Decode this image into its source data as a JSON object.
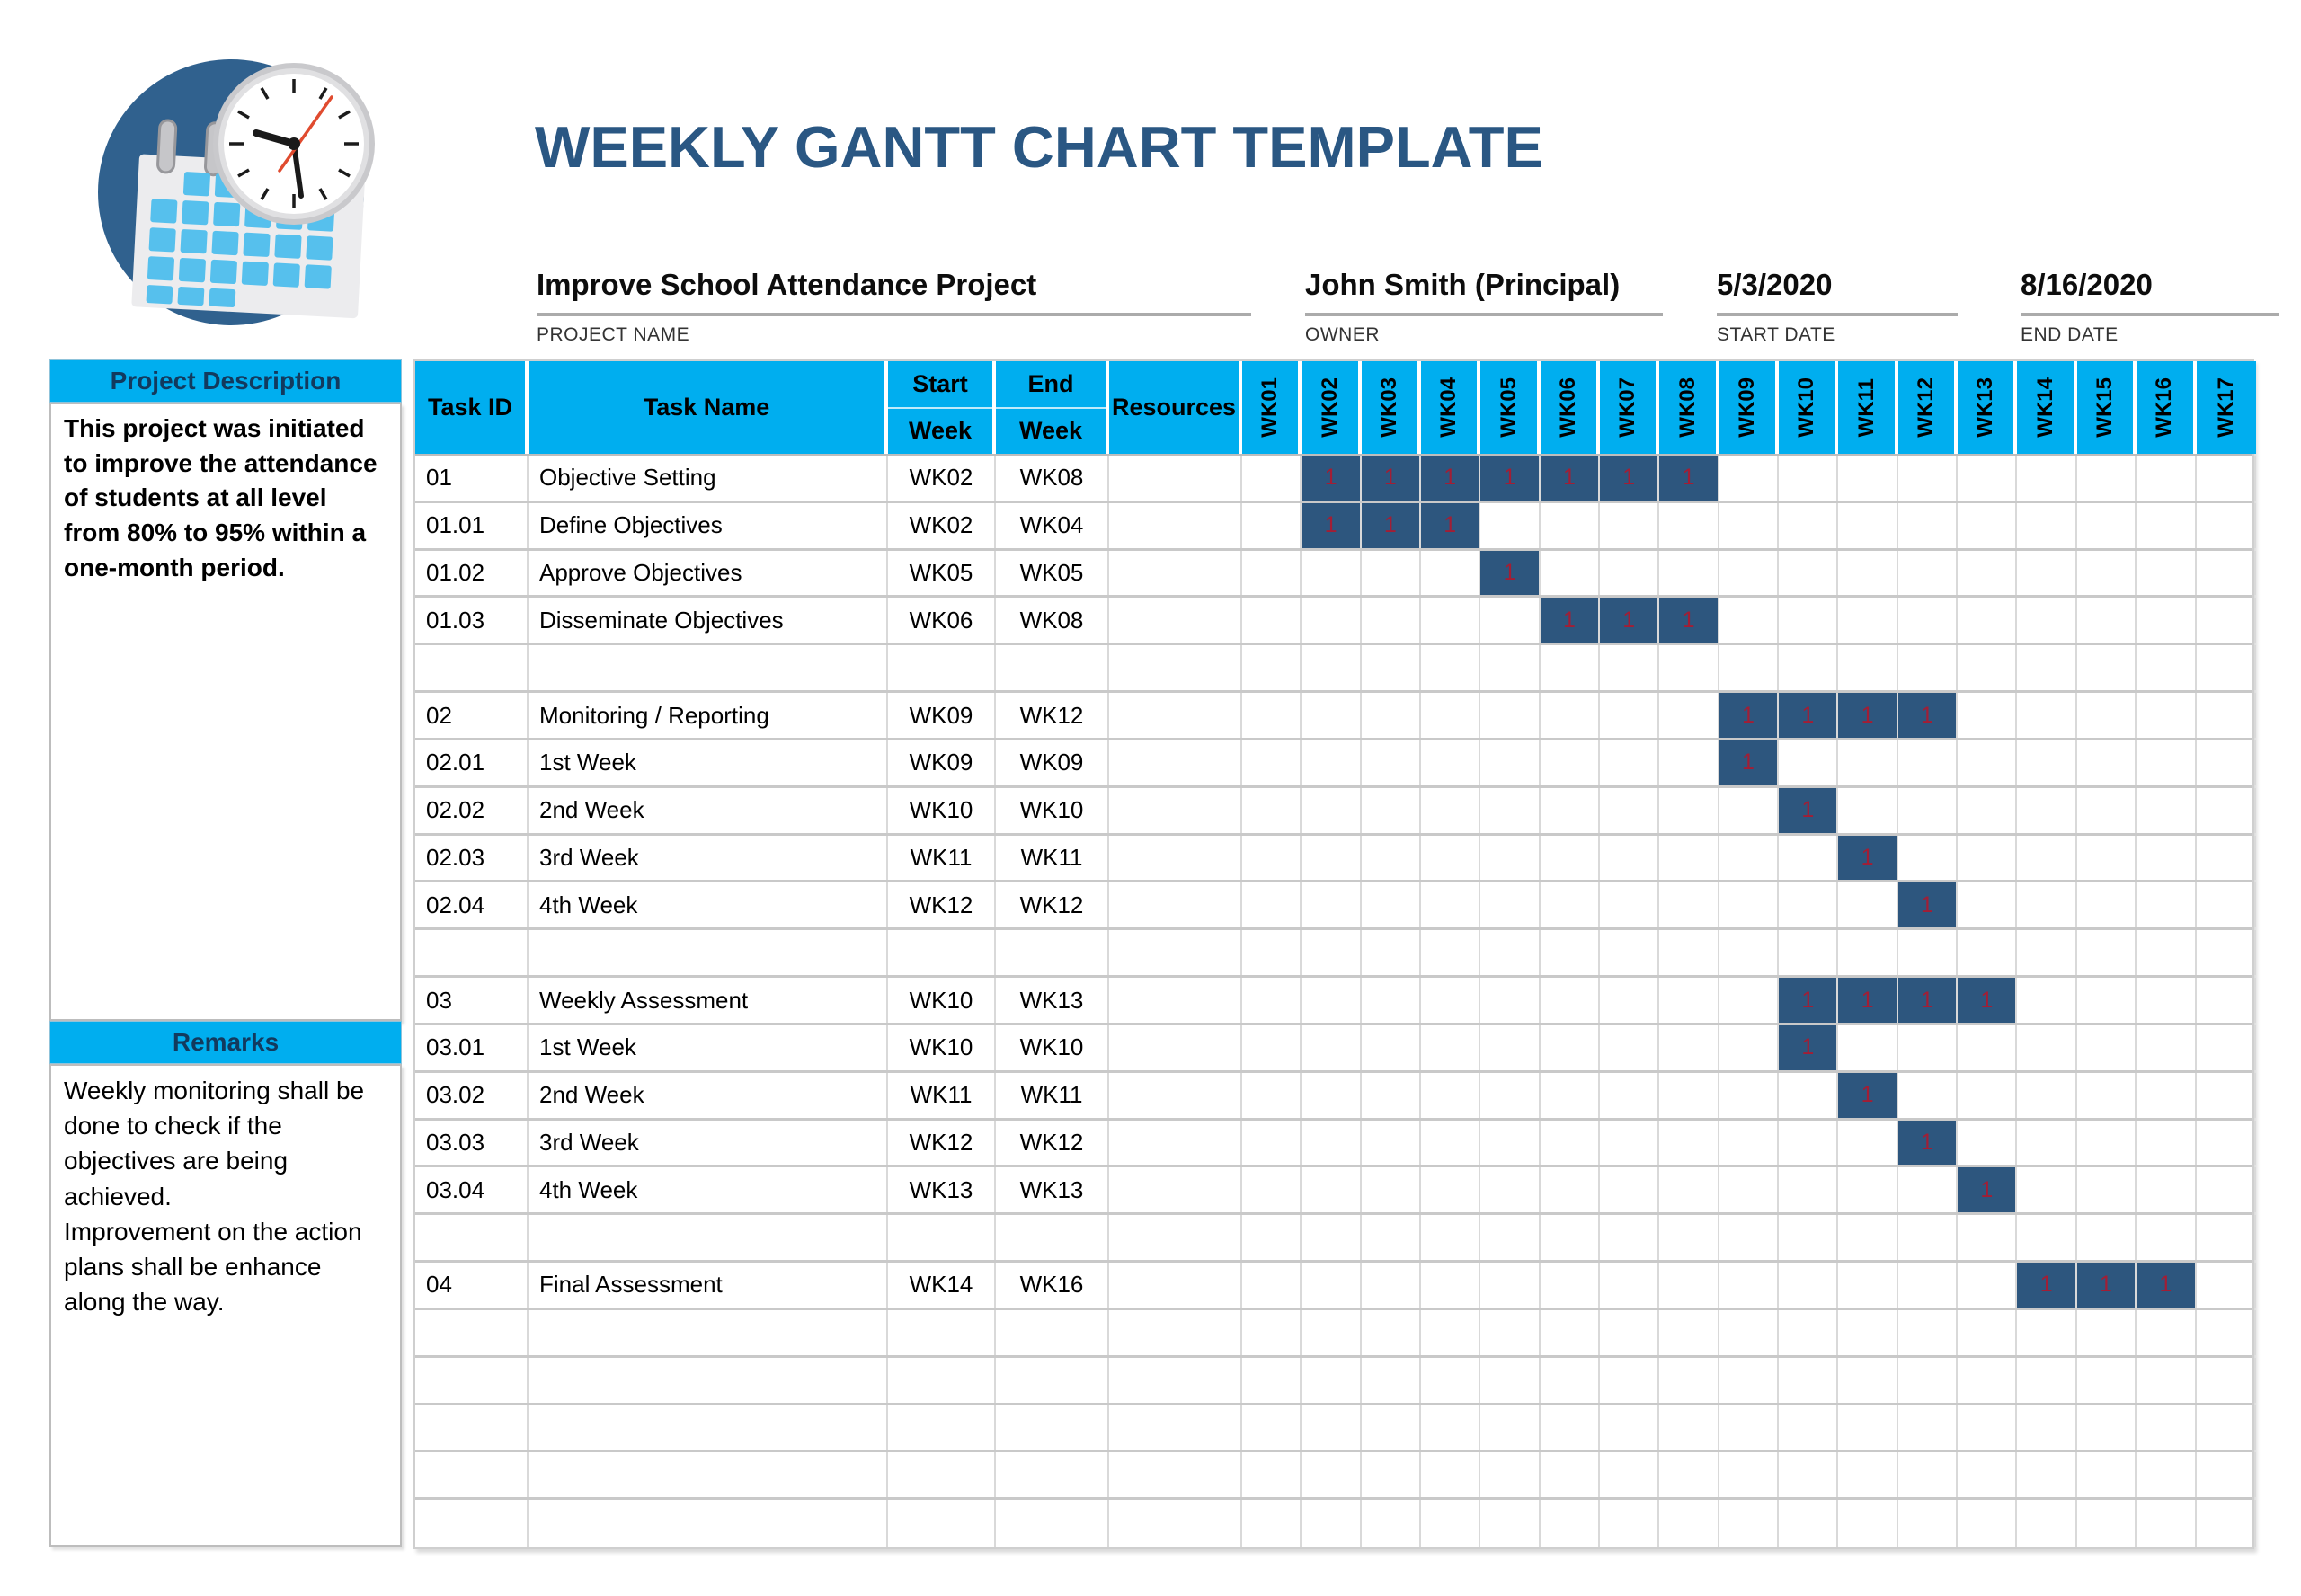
{
  "title": "WEEKLY GANTT CHART TEMPLATE",
  "project_info": {
    "name": {
      "value": "Improve School Attendance Project",
      "label": "PROJECT NAME"
    },
    "owner": {
      "value": "John Smith (Principal)",
      "label": "OWNER"
    },
    "start_date": {
      "value": "5/3/2020",
      "label": "START DATE"
    },
    "end_date": {
      "value": "8/16/2020",
      "label": "END DATE"
    }
  },
  "sidebar": {
    "description_header": "Project Description",
    "description_text": "This project was initiated to improve the attendance of students at all level from 80% to 95% within a one-month period.",
    "remarks_header": "Remarks",
    "remarks_lines": [
      "Weekly monitoring shall be done to check if the objectives are being achieved.",
      "Improvement on the action plans shall be enhance along the way."
    ]
  },
  "table": {
    "headers": {
      "task_id": "Task ID",
      "task_name": "Task Name",
      "start_top": "Start",
      "start_bottom": "Week",
      "end_top": "End",
      "end_bottom": "Week",
      "resources": "Resources"
    },
    "week_columns": [
      "WK01",
      "WK02",
      "WK03",
      "WK04",
      "WK05",
      "WK06",
      "WK07",
      "WK08",
      "WK09",
      "WK10",
      "WK11",
      "WK12",
      "WK13",
      "WK14",
      "WK15",
      "WK16",
      "WK17"
    ],
    "marker": "1",
    "rows": [
      {
        "id": "01",
        "name": "Objective Setting",
        "start": "WK02",
        "end": "WK08",
        "resources": "",
        "bar_start": 2,
        "bar_end": 8
      },
      {
        "id": "01.01",
        "name": "Define Objectives",
        "start": "WK02",
        "end": "WK04",
        "resources": "",
        "bar_start": 2,
        "bar_end": 4
      },
      {
        "id": "01.02",
        "name": "Approve Objectives",
        "start": "WK05",
        "end": "WK05",
        "resources": "",
        "bar_start": 5,
        "bar_end": 5
      },
      {
        "id": "01.03",
        "name": "Disseminate Objectives",
        "start": "WK06",
        "end": "WK08",
        "resources": "",
        "bar_start": 6,
        "bar_end": 8
      },
      {
        "id": "",
        "name": "",
        "start": "",
        "end": "",
        "resources": "",
        "bar_start": 0,
        "bar_end": 0
      },
      {
        "id": "02",
        "name": "Monitoring / Reporting",
        "start": "WK09",
        "end": "WK12",
        "resources": "",
        "bar_start": 9,
        "bar_end": 12
      },
      {
        "id": "02.01",
        "name": "1st Week",
        "start": "WK09",
        "end": "WK09",
        "resources": "",
        "bar_start": 9,
        "bar_end": 9
      },
      {
        "id": "02.02",
        "name": "2nd Week",
        "start": "WK10",
        "end": "WK10",
        "resources": "",
        "bar_start": 10,
        "bar_end": 10
      },
      {
        "id": "02.03",
        "name": "3rd Week",
        "start": "WK11",
        "end": "WK11",
        "resources": "",
        "bar_start": 11,
        "bar_end": 11
      },
      {
        "id": "02.04",
        "name": "4th Week",
        "start": "WK12",
        "end": "WK12",
        "resources": "",
        "bar_start": 12,
        "bar_end": 12
      },
      {
        "id": "",
        "name": "",
        "start": "",
        "end": "",
        "resources": "",
        "bar_start": 0,
        "bar_end": 0
      },
      {
        "id": "03",
        "name": "Weekly Assessment",
        "start": "WK10",
        "end": "WK13",
        "resources": "",
        "bar_start": 10,
        "bar_end": 13
      },
      {
        "id": "03.01",
        "name": "1st Week",
        "start": "WK10",
        "end": "WK10",
        "resources": "",
        "bar_start": 10,
        "bar_end": 10
      },
      {
        "id": "03.02",
        "name": "2nd Week",
        "start": "WK11",
        "end": "WK11",
        "resources": "",
        "bar_start": 11,
        "bar_end": 11
      },
      {
        "id": "03.03",
        "name": "3rd Week",
        "start": "WK12",
        "end": "WK12",
        "resources": "",
        "bar_start": 12,
        "bar_end": 12
      },
      {
        "id": "03.04",
        "name": "4th Week",
        "start": "WK13",
        "end": "WK13",
        "resources": "",
        "bar_start": 13,
        "bar_end": 13
      },
      {
        "id": "",
        "name": "",
        "start": "",
        "end": "",
        "resources": "",
        "bar_start": 0,
        "bar_end": 0
      },
      {
        "id": "04",
        "name": "Final Assessment",
        "start": "WK14",
        "end": "WK16",
        "resources": "",
        "bar_start": 14,
        "bar_end": 16
      },
      {
        "id": "",
        "name": "",
        "start": "",
        "end": "",
        "resources": "",
        "bar_start": 0,
        "bar_end": 0
      },
      {
        "id": "",
        "name": "",
        "start": "",
        "end": "",
        "resources": "",
        "bar_start": 0,
        "bar_end": 0
      },
      {
        "id": "",
        "name": "",
        "start": "",
        "end": "",
        "resources": "",
        "bar_start": 0,
        "bar_end": 0
      },
      {
        "id": "",
        "name": "",
        "start": "",
        "end": "",
        "resources": "",
        "bar_start": 0,
        "bar_end": 0
      },
      {
        "id": "",
        "name": "",
        "start": "",
        "end": "",
        "resources": "",
        "bar_start": 0,
        "bar_end": 0
      }
    ]
  },
  "colors": {
    "header_cyan": "#00AEEF",
    "bar_blue": "#2D567E",
    "marker_red": "#A21E35",
    "title_blue": "#2A5783",
    "logo_circle_blue": "#30618E",
    "logo_square_blue": "#56C0ED"
  },
  "icons": {
    "logo": "calendar-clock-logo"
  },
  "chart_data": {
    "type": "table",
    "subtype": "gantt",
    "title": "WEEKLY GANTT CHART TEMPLATE",
    "project": "Improve School Attendance Project",
    "owner": "John Smith (Principal)",
    "start_date": "5/3/2020",
    "end_date": "8/16/2020",
    "week_axis": [
      "WK01",
      "WK02",
      "WK03",
      "WK04",
      "WK05",
      "WK06",
      "WK07",
      "WK08",
      "WK09",
      "WK10",
      "WK11",
      "WK12",
      "WK13",
      "WK14",
      "WK15",
      "WK16",
      "WK17"
    ],
    "cell_marker_value": "1",
    "tasks": [
      {
        "task_id": "01",
        "task_name": "Objective Setting",
        "start_week": "WK02",
        "end_week": "WK08",
        "start_num": 2,
        "end_num": 8
      },
      {
        "task_id": "01.01",
        "task_name": "Define Objectives",
        "start_week": "WK02",
        "end_week": "WK04",
        "start_num": 2,
        "end_num": 4
      },
      {
        "task_id": "01.02",
        "task_name": "Approve Objectives",
        "start_week": "WK05",
        "end_week": "WK05",
        "start_num": 5,
        "end_num": 5
      },
      {
        "task_id": "01.03",
        "task_name": "Disseminate Objectives",
        "start_week": "WK06",
        "end_week": "WK08",
        "start_num": 6,
        "end_num": 8
      },
      {
        "task_id": "02",
        "task_name": "Monitoring / Reporting",
        "start_week": "WK09",
        "end_week": "WK12",
        "start_num": 9,
        "end_num": 12
      },
      {
        "task_id": "02.01",
        "task_name": "1st Week",
        "start_week": "WK09",
        "end_week": "WK09",
        "start_num": 9,
        "end_num": 9
      },
      {
        "task_id": "02.02",
        "task_name": "2nd Week",
        "start_week": "WK10",
        "end_week": "WK10",
        "start_num": 10,
        "end_num": 10
      },
      {
        "task_id": "02.03",
        "task_name": "3rd Week",
        "start_week": "WK11",
        "end_week": "WK11",
        "start_num": 11,
        "end_num": 11
      },
      {
        "task_id": "02.04",
        "task_name": "4th Week",
        "start_week": "WK12",
        "end_week": "WK12",
        "start_num": 12,
        "end_num": 12
      },
      {
        "task_id": "03",
        "task_name": "Weekly Assessment",
        "start_week": "WK10",
        "end_week": "WK13",
        "start_num": 10,
        "end_num": 13
      },
      {
        "task_id": "03.01",
        "task_name": "1st Week",
        "start_week": "WK10",
        "end_week": "WK10",
        "start_num": 10,
        "end_num": 10
      },
      {
        "task_id": "03.02",
        "task_name": "2nd Week",
        "start_week": "WK11",
        "end_week": "WK11",
        "start_num": 11,
        "end_num": 11
      },
      {
        "task_id": "03.03",
        "task_name": "3rd Week",
        "start_week": "WK12",
        "end_week": "WK12",
        "start_num": 12,
        "end_num": 12
      },
      {
        "task_id": "03.04",
        "task_name": "4th Week",
        "start_week": "WK13",
        "end_week": "WK13",
        "start_num": 13,
        "end_num": 13
      },
      {
        "task_id": "04",
        "task_name": "Final Assessment",
        "start_week": "WK14",
        "end_week": "WK16",
        "start_num": 14,
        "end_num": 16
      }
    ]
  }
}
